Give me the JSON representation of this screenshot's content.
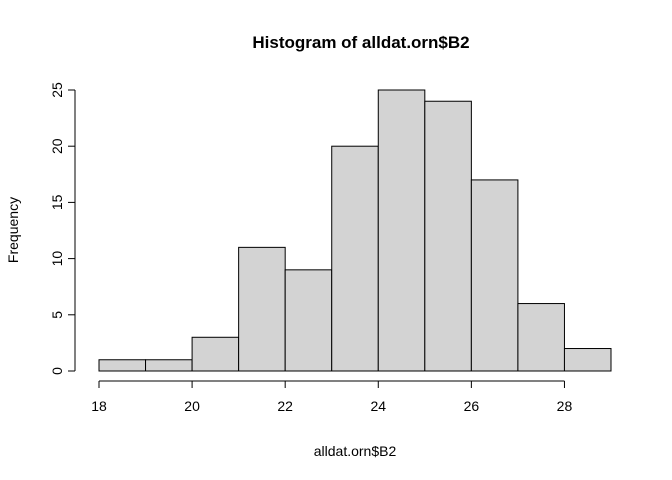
{
  "chart_data": {
    "type": "bar",
    "subtype": "histogram",
    "title": "Histogram of alldat.orn$B2",
    "xlabel": "alldat.orn$B2",
    "ylabel": "Frequency",
    "bins": [
      {
        "start": 18,
        "end": 19,
        "count": 1
      },
      {
        "start": 19,
        "end": 20,
        "count": 1
      },
      {
        "start": 20,
        "end": 21,
        "count": 3
      },
      {
        "start": 21,
        "end": 22,
        "count": 11
      },
      {
        "start": 22,
        "end": 23,
        "count": 9
      },
      {
        "start": 23,
        "end": 24,
        "count": 20
      },
      {
        "start": 24,
        "end": 25,
        "count": 25
      },
      {
        "start": 25,
        "end": 26,
        "count": 24
      },
      {
        "start": 26,
        "end": 27,
        "count": 17
      },
      {
        "start": 27,
        "end": 28,
        "count": 6
      },
      {
        "start": 28,
        "end": 29,
        "count": 2
      }
    ],
    "xlim": [
      18,
      29
    ],
    "ylim": [
      0,
      25
    ],
    "x_ticks": [
      "18",
      "20",
      "22",
      "24",
      "26",
      "28"
    ],
    "y_ticks": [
      "0",
      "5",
      "10",
      "15",
      "20",
      "25"
    ],
    "grid": false,
    "colors": {
      "bar_fill": "#d3d3d3",
      "bar_stroke": "#000000"
    }
  }
}
